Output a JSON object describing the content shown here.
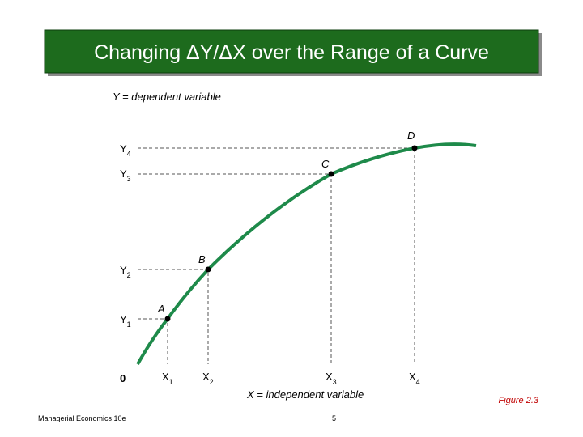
{
  "header": {
    "title": "Changing ΔY/ΔX over the Range of a Curve"
  },
  "diagram": {
    "y_axis_label": "Y = dependent variable",
    "x_axis_label": "X = independent variable",
    "origin": "0",
    "points": [
      "A",
      "B",
      "C",
      "D"
    ],
    "y_ticks": [
      {
        "main": "Y",
        "sub": "1"
      },
      {
        "main": "Y",
        "sub": "2"
      },
      {
        "main": "Y",
        "sub": "3"
      },
      {
        "main": "Y",
        "sub": "4"
      }
    ],
    "x_ticks": [
      {
        "main": "X",
        "sub": "1"
      },
      {
        "main": "X",
        "sub": "2"
      },
      {
        "main": "X",
        "sub": "3"
      },
      {
        "main": "X",
        "sub": "4"
      }
    ],
    "caption": "Figure 2.3"
  },
  "footer": {
    "left": "Managerial Economics 10e",
    "page": "5"
  }
}
